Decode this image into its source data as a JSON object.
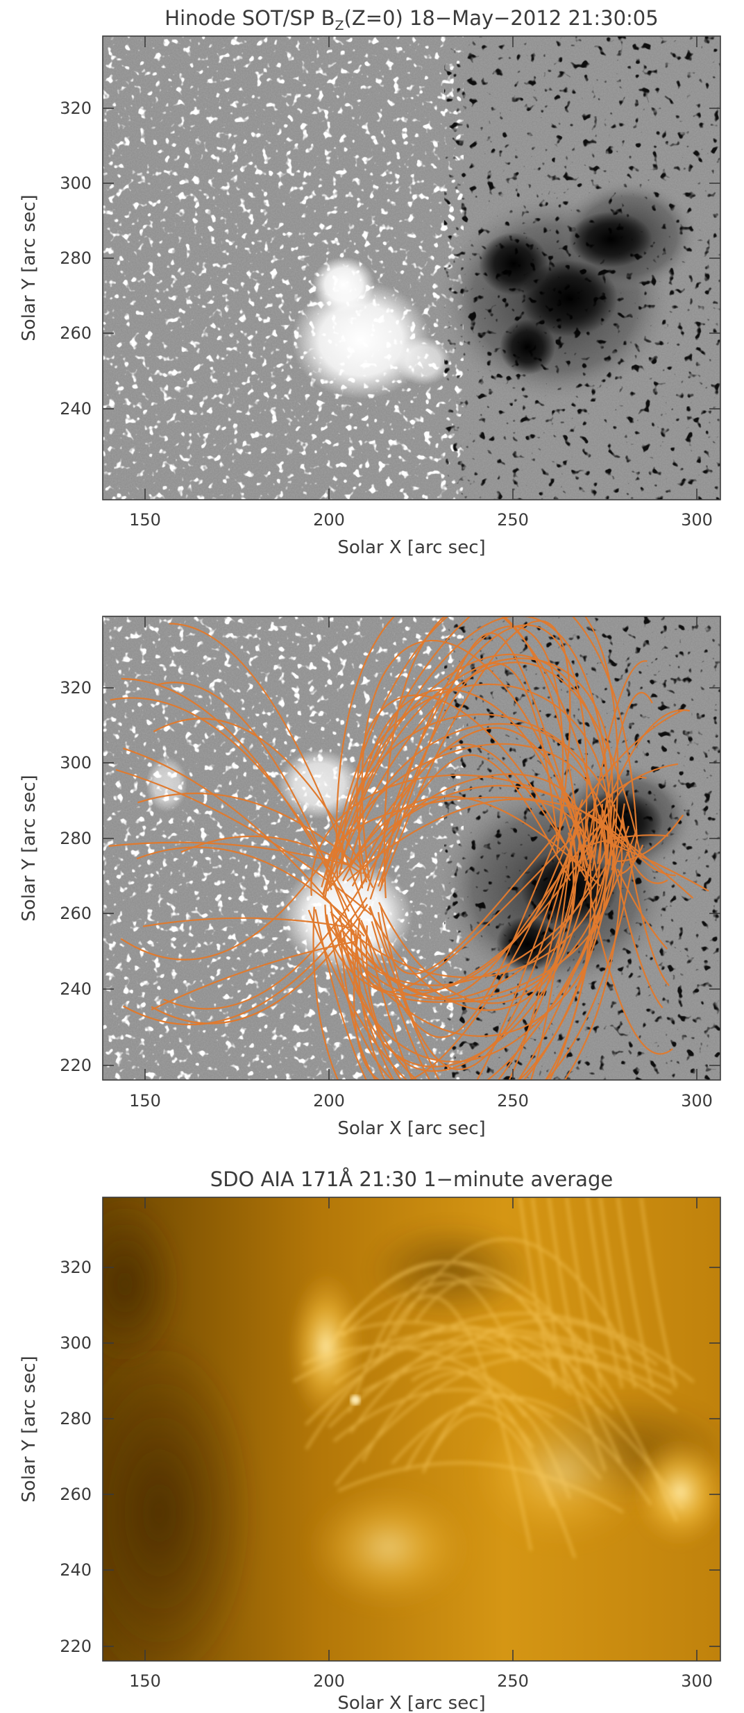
{
  "panels": [
    {
      "id": "magnetogram",
      "title": "Hinode SOT/SP B_Z(Z=0)  18−May−2012 21:30:05",
      "title_main": "Hinode SOT/SP B",
      "title_sub": "Z",
      "title_rest": "(Z=0)  18−May−2012 21:30:05",
      "xlabel": "Solar X [arc sec]",
      "ylabel": "Solar Y [arc sec]",
      "x_ticks": [
        "150",
        "200",
        "250",
        "300"
      ],
      "y_ticks": [
        "240",
        "260",
        "280",
        "300",
        "320"
      ],
      "xlim": [
        136,
        304
      ],
      "ylim": [
        216,
        340
      ]
    },
    {
      "id": "field-lines",
      "title": "",
      "xlabel": "Solar X [arc sec]",
      "ylabel": "Solar Y [arc sec]",
      "x_ticks": [
        "150",
        "200",
        "250",
        "300"
      ],
      "y_ticks": [
        "220",
        "240",
        "260",
        "280",
        "300",
        "320"
      ],
      "xlim": [
        136,
        304
      ],
      "ylim": [
        216,
        340
      ]
    },
    {
      "id": "aia-171",
      "title": "SDO AIA 171Å  21:30  1−minute average",
      "xlabel": "Solar X [arc sec]",
      "ylabel": "Solar Y [arc sec]",
      "x_ticks": [
        "150",
        "200",
        "250",
        "300"
      ],
      "y_ticks": [
        "220",
        "240",
        "260",
        "280",
        "300",
        "320"
      ],
      "xlim": [
        136,
        304
      ],
      "ylim": [
        216,
        340
      ]
    }
  ],
  "colors": {
    "axis": "#3a3a3a",
    "magnetogram_background": "#8c8c8c",
    "positive_polarity": "#ffffff",
    "negative_polarity": "#000000",
    "field_line": "#e07a2e",
    "aia_dark": "#5a3a00",
    "aia_mid": "#c88a10",
    "aia_bright": "#ffd060"
  }
}
